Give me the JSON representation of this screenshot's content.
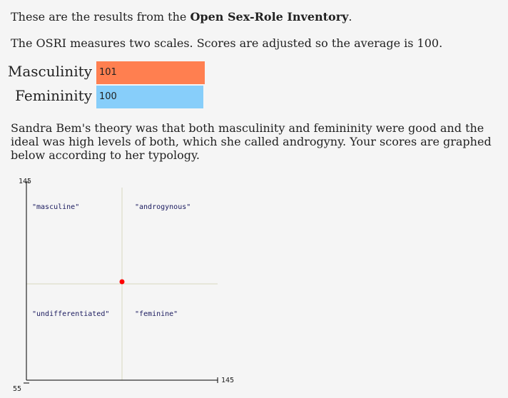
{
  "intro": {
    "prefix": "These are the results from the ",
    "inventory_name": "Open Sex-Role Inventory",
    "suffix": "."
  },
  "description": "The OSRI measures two scales. Scores are adjusted so the average is 100.",
  "scales": [
    {
      "label": "Masculinity",
      "value": 101,
      "color": "#ff7f50"
    },
    {
      "label": "Femininity",
      "value": 100,
      "color": "#87cefa"
    }
  ],
  "theory_text": "Sandra Bem's theory was that both masculinity and femininity were good and the ideal was high levels of both, which she called androgyny. Your scores are graphed below according to her typology.",
  "chart_data": {
    "type": "scatter",
    "x_axis": {
      "min": 55,
      "max": 145,
      "tick_labels": [
        "55",
        "145"
      ]
    },
    "y_axis": {
      "min": 55,
      "max": 145,
      "tick_labels": [
        "55",
        "145"
      ]
    },
    "reference_x": 100,
    "reference_y": 100,
    "quadrant_labels": {
      "top_left": "\"masculine\"",
      "top_right": "\"androgynous\"",
      "bottom_left": "\"undifferentiated\"",
      "bottom_right": "\"feminine\""
    },
    "points": [
      {
        "x": 100,
        "y": 101
      }
    ],
    "point_color": "#ff0000",
    "axis_color": "#000000",
    "reference_line_color": "#d6d8c0"
  }
}
